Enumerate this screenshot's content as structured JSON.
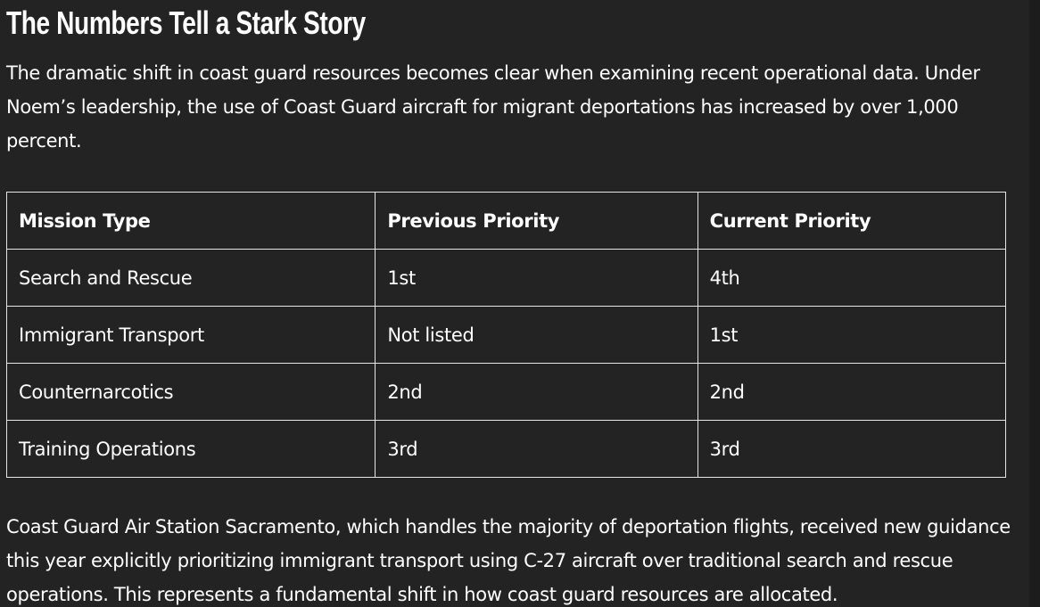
{
  "article": {
    "heading": "The Numbers Tell a Stark Story",
    "intro_paragraph": "The dramatic shift in coast guard resources becomes clear when examining recent operational data. Under Noem’s leadership, the use of Coast Guard aircraft for migrant deportations has increased by over 1,000 percent.",
    "table": {
      "headers": [
        "Mission Type",
        "Previous Priority",
        "Current Priority"
      ],
      "rows": [
        [
          "Search and Rescue",
          "1st",
          "4th"
        ],
        [
          "Immigrant Transport",
          "Not listed",
          "1st"
        ],
        [
          "Counternarcotics",
          "2nd",
          "2nd"
        ],
        [
          "Training Operations",
          "3rd",
          "3rd"
        ]
      ]
    },
    "closing_paragraph": "Coast Guard Air Station Sacramento, which handles the majority of deportation flights, received new guidance this year explicitly prioritizing immigrant transport using C-27 aircraft over traditional search and rescue operations. This represents a fundamental shift in how coast guard resources are allocated."
  }
}
